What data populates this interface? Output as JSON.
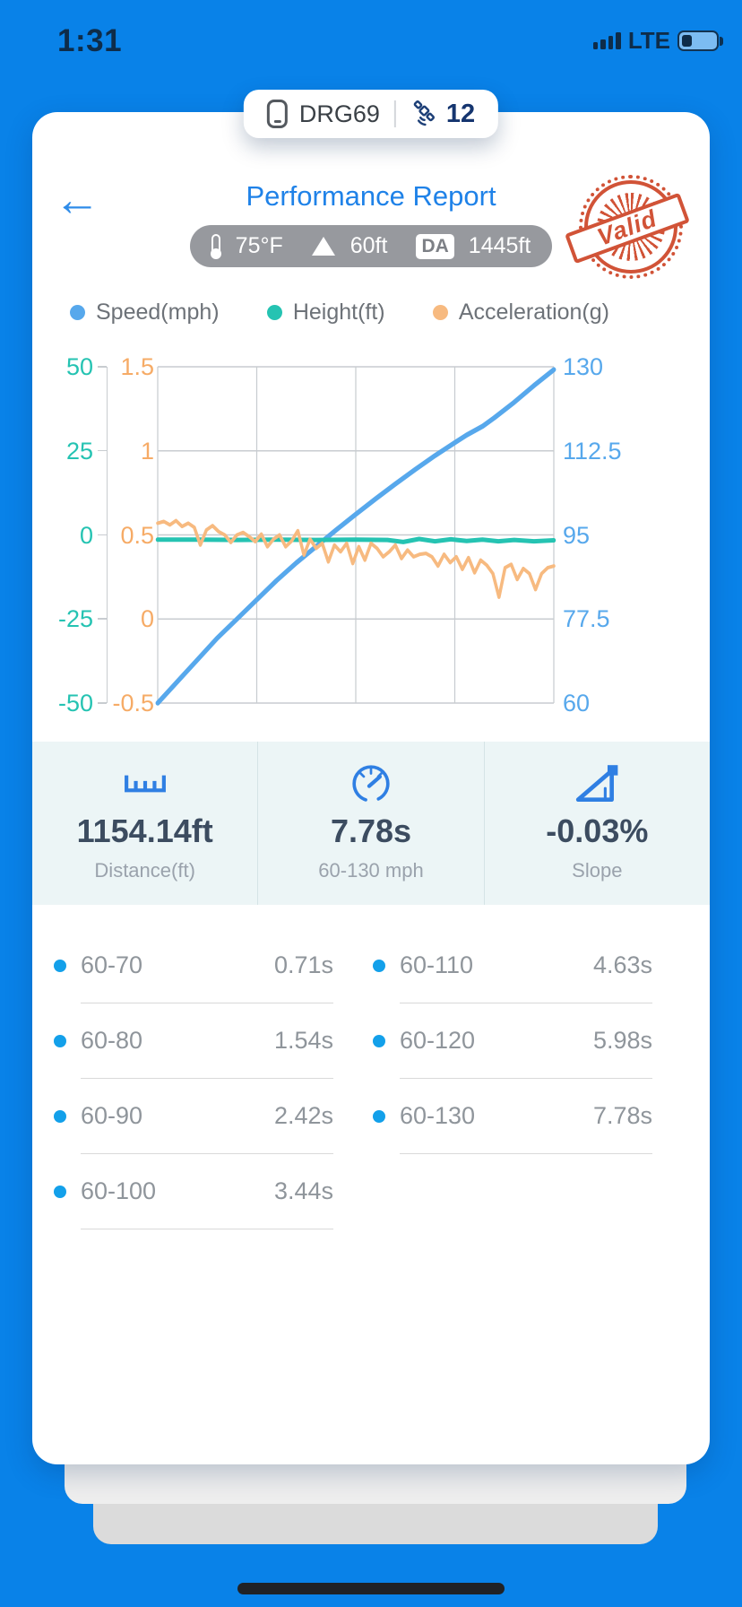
{
  "status_bar": {
    "time": "1:31",
    "network": "LTE"
  },
  "device_pill": {
    "device_name": "DRG69",
    "satellite_count": "12"
  },
  "header": {
    "back_icon": "←",
    "title": "Performance Report",
    "stamp_text": "Valid",
    "conditions": {
      "temperature": "75°F",
      "altitude": "60ft",
      "da_label": "DA",
      "da_value": "1445ft"
    }
  },
  "legend": [
    {
      "label": "Speed(mph)",
      "color": "#57a8ec"
    },
    {
      "label": "Height(ft)",
      "color": "#25c3b2"
    },
    {
      "label": "Acceleration(g)",
      "color": "#f7ba80"
    }
  ],
  "chart_data": {
    "type": "line",
    "title": "",
    "xlabel": "",
    "x_range": [
      0,
      1
    ],
    "grid": true,
    "grid_columns": 4,
    "grid_rows": 4,
    "legend_position": "top",
    "axes": {
      "height": {
        "side": "outer-left",
        "color": "#25c3b2",
        "range": [
          -50,
          50
        ],
        "ticks": [
          "50",
          "25",
          "0",
          "-25",
          "-50"
        ]
      },
      "acceleration": {
        "side": "inner-left",
        "color": "#f6ab66",
        "range": [
          -0.5,
          1.5
        ],
        "ticks": [
          "1.5",
          "1",
          "0.5",
          "0",
          "-0.5"
        ]
      },
      "speed": {
        "side": "right",
        "color": "#57a8ec",
        "range": [
          60,
          130
        ],
        "ticks": [
          "130",
          "112.5",
          "95",
          "77.5",
          "60"
        ]
      }
    },
    "series": [
      {
        "name": "Speed(mph)",
        "axis": "speed",
        "color": "#57a8ec",
        "width": 5.5,
        "x": [
          0,
          0.05,
          0.1,
          0.15,
          0.2,
          0.25,
          0.3,
          0.35,
          0.4,
          0.45,
          0.5,
          0.55,
          0.6,
          0.65,
          0.7,
          0.75,
          0.78,
          0.82,
          0.85,
          0.9,
          0.95,
          1.0
        ],
        "values": [
          60,
          64.5,
          69,
          73.5,
          77.5,
          81.5,
          85.5,
          89.2,
          92.6,
          96,
          99.3,
          102.5,
          105.6,
          108.6,
          111.5,
          114.2,
          115.8,
          117.6,
          119.4,
          122.6,
          126.1,
          129.4
        ]
      },
      {
        "name": "Height(ft)",
        "axis": "height",
        "color": "#25c3b2",
        "width": 5,
        "x": [
          0,
          0.1,
          0.2,
          0.3,
          0.4,
          0.5,
          0.58,
          0.62,
          0.66,
          0.7,
          0.74,
          0.78,
          0.82,
          0.86,
          0.9,
          0.95,
          1.0
        ],
        "values": [
          -1.4,
          -1.4,
          -1.5,
          -1.4,
          -1.5,
          -1.4,
          -1.5,
          -2.1,
          -1.2,
          -1.9,
          -1.3,
          -1.8,
          -1.4,
          -1.9,
          -1.5,
          -1.9,
          -1.6
        ]
      },
      {
        "name": "Acceleration(g)",
        "axis": "acceleration",
        "color": "#f7ba80",
        "width": 4,
        "values": [
          0.57,
          0.58,
          0.56,
          0.585,
          0.55,
          0.57,
          0.545,
          0.44,
          0.53,
          0.555,
          0.52,
          0.5,
          0.455,
          0.5,
          0.515,
          0.49,
          0.46,
          0.505,
          0.43,
          0.475,
          0.5,
          0.43,
          0.465,
          0.525,
          0.38,
          0.475,
          0.42,
          0.45,
          0.34,
          0.44,
          0.4,
          0.45,
          0.33,
          0.43,
          0.35,
          0.45,
          0.42,
          0.37,
          0.4,
          0.44,
          0.36,
          0.41,
          0.37,
          0.385,
          0.39,
          0.37,
          0.315,
          0.385,
          0.335,
          0.37,
          0.295,
          0.365,
          0.275,
          0.35,
          0.32,
          0.27,
          0.13,
          0.305,
          0.325,
          0.235,
          0.3,
          0.27,
          0.175,
          0.27,
          0.305,
          0.315
        ]
      }
    ]
  },
  "stats": [
    {
      "icon": "ruler-icon",
      "value": "1154.14ft",
      "label": "Distance(ft)"
    },
    {
      "icon": "speedometer-icon",
      "value": "7.78s",
      "label": "60-130 mph"
    },
    {
      "icon": "slope-icon",
      "value": "-0.03%",
      "label": "Slope"
    }
  ],
  "splits": {
    "left": [
      {
        "range": "60-70",
        "time": "0.71s"
      },
      {
        "range": "60-80",
        "time": "1.54s"
      },
      {
        "range": "60-90",
        "time": "2.42s"
      },
      {
        "range": "60-100",
        "time": "3.44s"
      }
    ],
    "right": [
      {
        "range": "60-110",
        "time": "4.63s"
      },
      {
        "range": "60-120",
        "time": "5.98s"
      },
      {
        "range": "60-130",
        "time": "7.78s"
      }
    ]
  },
  "colors": {
    "background": "#0982e8",
    "title_blue": "#1f82e8",
    "stamp_red": "#cf4a2d",
    "grid": "#c8ccd0",
    "split_dot": "#13a0ea",
    "stat_icon_blue": "#2f7fe3"
  }
}
